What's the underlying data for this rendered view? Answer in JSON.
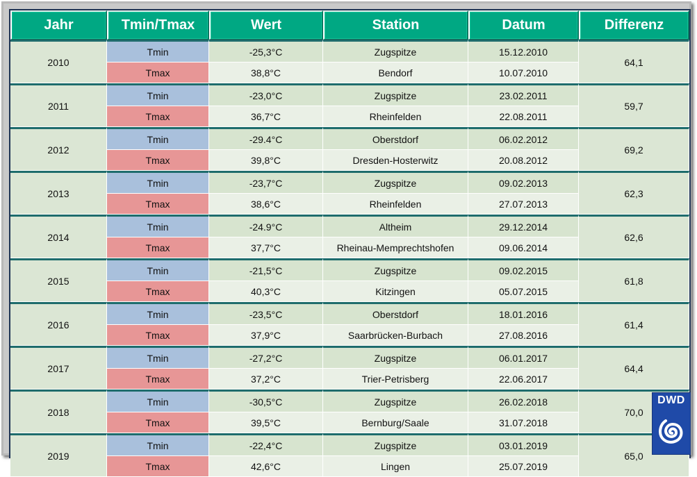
{
  "header": {
    "year": "Jahr",
    "type": "Tmin/Tmax",
    "value": "Wert",
    "station": "Station",
    "date": "Datum",
    "difference": "Differenz"
  },
  "years": [
    {
      "year": "2010",
      "diff": "64,1",
      "tmin": {
        "label": "Tmin",
        "value": "-25,3°C",
        "station": "Zugspitze",
        "date": "15.12.2010"
      },
      "tmax": {
        "label": "Tmax",
        "value": "38,8°C",
        "station": "Bendorf",
        "date": "10.07.2010"
      }
    },
    {
      "year": "2011",
      "diff": "59,7",
      "tmin": {
        "label": "Tmin",
        "value": "-23,0°C",
        "station": "Zugspitze",
        "date": "23.02.2011"
      },
      "tmax": {
        "label": "Tmax",
        "value": "36,7°C",
        "station": "Rheinfelden",
        "date": "22.08.2011"
      }
    },
    {
      "year": "2012",
      "diff": "69,2",
      "tmin": {
        "label": "Tmin",
        "value": "-29.4°C",
        "station": "Oberstdorf",
        "date": "06.02.2012"
      },
      "tmax": {
        "label": "Tmax",
        "value": "39,8°C",
        "station": "Dresden-Hosterwitz",
        "date": "20.08.2012"
      }
    },
    {
      "year": "2013",
      "diff": "62,3",
      "tmin": {
        "label": "Tmin",
        "value": "-23,7°C",
        "station": "Zugspitze",
        "date": "09.02.2013"
      },
      "tmax": {
        "label": "Tmax",
        "value": "38,6°C",
        "station": "Rheinfelden",
        "date": "27.07.2013"
      }
    },
    {
      "year": "2014",
      "diff": "62,6",
      "tmin": {
        "label": "Tmin",
        "value": "-24.9°C",
        "station": "Altheim",
        "date": "29.12.2014"
      },
      "tmax": {
        "label": "Tmax",
        "value": "37,7°C",
        "station": "Rheinau-Memprechtshofen",
        "date": "09.06.2014"
      }
    },
    {
      "year": "2015",
      "diff": "61,8",
      "tmin": {
        "label": "Tmin",
        "value": "-21,5°C",
        "station": "Zugspitze",
        "date": "09.02.2015"
      },
      "tmax": {
        "label": "Tmax",
        "value": "40,3°C",
        "station": "Kitzingen",
        "date": "05.07.2015"
      }
    },
    {
      "year": "2016",
      "diff": "61,4",
      "tmin": {
        "label": "Tmin",
        "value": "-23,5°C",
        "station": "Oberstdorf",
        "date": "18.01.2016"
      },
      "tmax": {
        "label": "Tmax",
        "value": "37,9°C",
        "station": "Saarbrücken-Burbach",
        "date": "27.08.2016"
      }
    },
    {
      "year": "2017",
      "diff": "64,4",
      "tmin": {
        "label": "Tmin",
        "value": "-27,2°C",
        "station": "Zugspitze",
        "date": "06.01.2017"
      },
      "tmax": {
        "label": "Tmax",
        "value": "37,2°C",
        "station": "Trier-Petrisberg",
        "date": "22.06.2017"
      }
    },
    {
      "year": "2018",
      "diff": "70,0",
      "tmin": {
        "label": "Tmin",
        "value": "-30,5°C",
        "station": "Zugspitze",
        "date": "26.02.2018"
      },
      "tmax": {
        "label": "Tmax",
        "value": "39,5°C",
        "station": "Bernburg/Saale",
        "date": "31.07.2018"
      }
    },
    {
      "year": "2019",
      "diff": "65,0",
      "tmin": {
        "label": "Tmin",
        "value": "-22,4°C",
        "station": "Zugspitze",
        "date": "03.01.2019"
      },
      "tmax": {
        "label": "Tmax",
        "value": "42,6°C",
        "station": "Lingen",
        "date": "25.07.2019"
      }
    }
  ],
  "logo": {
    "text": "DWD",
    "icon": "dwd-spiral-icon"
  },
  "colors": {
    "header": "#00a883",
    "tmin": "#a9c0dc",
    "tmax": "#e79696",
    "row_min": "#d7e4cf",
    "row_max": "#eaf0e6",
    "group_line": "#1e6c6c",
    "logo": "#1f4aa8"
  }
}
